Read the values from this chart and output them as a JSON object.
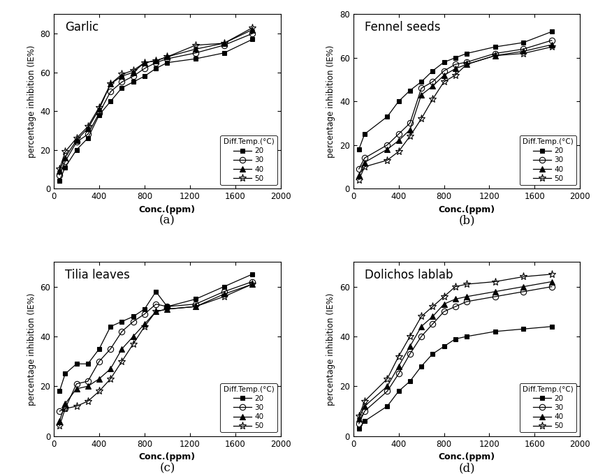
{
  "garlic": {
    "title": "Garlic",
    "label": "(a)",
    "x": [
      50,
      100,
      200,
      300,
      400,
      500,
      600,
      700,
      800,
      900,
      1000,
      1250,
      1500,
      1750
    ],
    "t20": [
      4,
      11,
      20,
      26,
      38,
      45,
      52,
      55,
      58,
      62,
      65,
      67,
      70,
      77
    ],
    "t30": [
      7,
      14,
      24,
      28,
      39,
      50,
      55,
      58,
      62,
      65,
      67,
      70,
      74,
      80
    ],
    "t40": [
      9,
      16,
      25,
      31,
      41,
      54,
      58,
      60,
      65,
      66,
      68,
      72,
      75,
      82
    ],
    "t50": [
      10,
      19,
      26,
      32,
      42,
      54,
      59,
      61,
      65,
      66,
      68,
      74,
      75,
      83
    ],
    "ylim": [
      0,
      90
    ],
    "yticks": [
      0,
      20,
      40,
      60,
      80
    ]
  },
  "fennel": {
    "title": "Fennel seeds",
    "label": "(b)",
    "x": [
      50,
      100,
      300,
      400,
      500,
      600,
      700,
      800,
      900,
      1000,
      1250,
      1500,
      1750
    ],
    "t20": [
      18,
      25,
      33,
      40,
      45,
      49,
      54,
      58,
      60,
      62,
      65,
      67,
      72
    ],
    "t30": [
      9,
      14,
      20,
      25,
      30,
      46,
      49,
      54,
      57,
      58,
      62,
      64,
      68
    ],
    "t40": [
      6,
      12,
      18,
      22,
      27,
      43,
      47,
      52,
      55,
      57,
      61,
      63,
      66
    ],
    "t50": [
      4,
      10,
      13,
      17,
      24,
      32,
      41,
      49,
      52,
      57,
      61,
      62,
      65
    ],
    "ylim": [
      0,
      80
    ],
    "yticks": [
      0,
      20,
      40,
      60,
      80
    ]
  },
  "tilia": {
    "title": "Tilia leaves",
    "label": "(c)",
    "x": [
      50,
      100,
      200,
      300,
      400,
      500,
      600,
      700,
      800,
      900,
      1000,
      1250,
      1500,
      1750
    ],
    "t20": [
      18,
      25,
      29,
      29,
      35,
      44,
      46,
      48,
      51,
      58,
      52,
      55,
      60,
      65
    ],
    "t30": [
      10,
      11,
      21,
      22,
      30,
      35,
      42,
      46,
      49,
      53,
      52,
      53,
      58,
      62
    ],
    "t40": [
      6,
      13,
      19,
      20,
      23,
      27,
      35,
      40,
      45,
      50,
      51,
      52,
      57,
      61
    ],
    "t50": [
      4,
      11,
      12,
      14,
      18,
      23,
      30,
      37,
      44,
      50,
      51,
      52,
      56,
      61
    ],
    "ylim": [
      0,
      70
    ],
    "yticks": [
      0,
      20,
      40,
      60
    ]
  },
  "dolichos": {
    "title": "Dolichos lablab",
    "label": "(d)",
    "x": [
      50,
      100,
      300,
      400,
      500,
      600,
      700,
      800,
      900,
      1000,
      1250,
      1500,
      1750
    ],
    "t20": [
      3,
      6,
      12,
      18,
      22,
      28,
      33,
      36,
      39,
      40,
      42,
      43,
      44
    ],
    "t30": [
      5,
      10,
      18,
      25,
      33,
      40,
      45,
      50,
      52,
      54,
      56,
      58,
      60
    ],
    "t40": [
      7,
      12,
      20,
      28,
      36,
      44,
      48,
      53,
      55,
      56,
      58,
      60,
      62
    ],
    "t50": [
      8,
      14,
      23,
      32,
      40,
      48,
      52,
      56,
      60,
      61,
      62,
      64,
      65
    ],
    "ylim": [
      0,
      70
    ],
    "yticks": [
      0,
      20,
      40,
      60
    ]
  },
  "xlim": [
    0,
    2000
  ],
  "xticks": [
    0,
    400,
    800,
    1200,
    1600,
    2000
  ],
  "xlabel": "Conc.(ppm)",
  "ylabel": "percentage inhibition (IE%)",
  "legend_title": "Diff.Temp.(°C)",
  "temps": [
    "20",
    "30",
    "40",
    "50"
  ],
  "markers": [
    "s",
    "o",
    "^",
    "*"
  ],
  "fillstyles": [
    "full",
    "none",
    "full",
    "none"
  ],
  "markersize": [
    5,
    6,
    6,
    8
  ]
}
